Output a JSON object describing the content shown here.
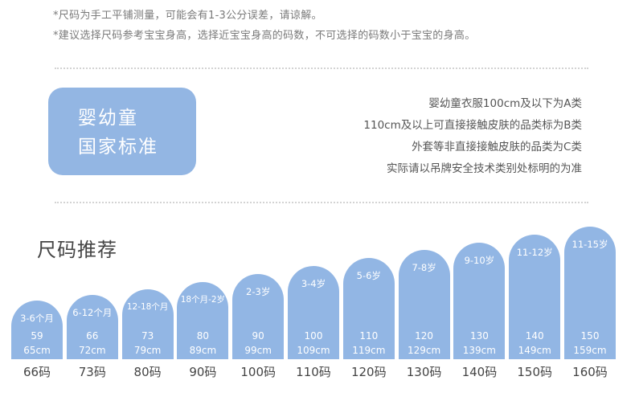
{
  "notes": [
    "*尺码为手工平铺测量，可能会有1-3公分误差，请谅解。",
    "*建议选择尺码参考宝宝身高，选择近宝宝身高的码数，不可选择的码数小于宝宝的身高。"
  ],
  "standard": {
    "badge_line1": "婴幼童",
    "badge_line2": "国家标准",
    "lines": [
      "婴幼童衣服100cm及以下为A类",
      "110cm及以上可直接接触皮肤的品类标为B类",
      "外套等非直接接触皮肤的品类为C类",
      "实际请以吊牌安全技术类别处标明的为准"
    ]
  },
  "section_title": "尺码推荐",
  "chart_data": {
    "type": "bar",
    "categories": [
      "66码",
      "73码",
      "80码",
      "90码",
      "100码",
      "110码",
      "120码",
      "130码",
      "140码",
      "150码",
      "160码"
    ],
    "age_labels": [
      "3-6个月",
      "6-12个月",
      "12-18个月",
      "18个月-2岁",
      "2-3岁",
      "3-4岁",
      "5-6岁",
      "7-8岁",
      "9-10岁",
      "11-12岁",
      "11-15岁"
    ],
    "height_low": [
      "59",
      "66",
      "73",
      "80",
      "90",
      "100",
      "110",
      "120",
      "130",
      "140",
      "150"
    ],
    "height_high": [
      "65cm",
      "72cm",
      "79cm",
      "89cm",
      "99cm",
      "109cm",
      "119cm",
      "129cm",
      "139cm",
      "149cm",
      "159cm"
    ],
    "values": [
      65,
      72,
      79,
      89,
      99,
      109,
      119,
      129,
      139,
      149,
      159
    ],
    "colors": {
      "bar": "#92b6e4"
    }
  }
}
